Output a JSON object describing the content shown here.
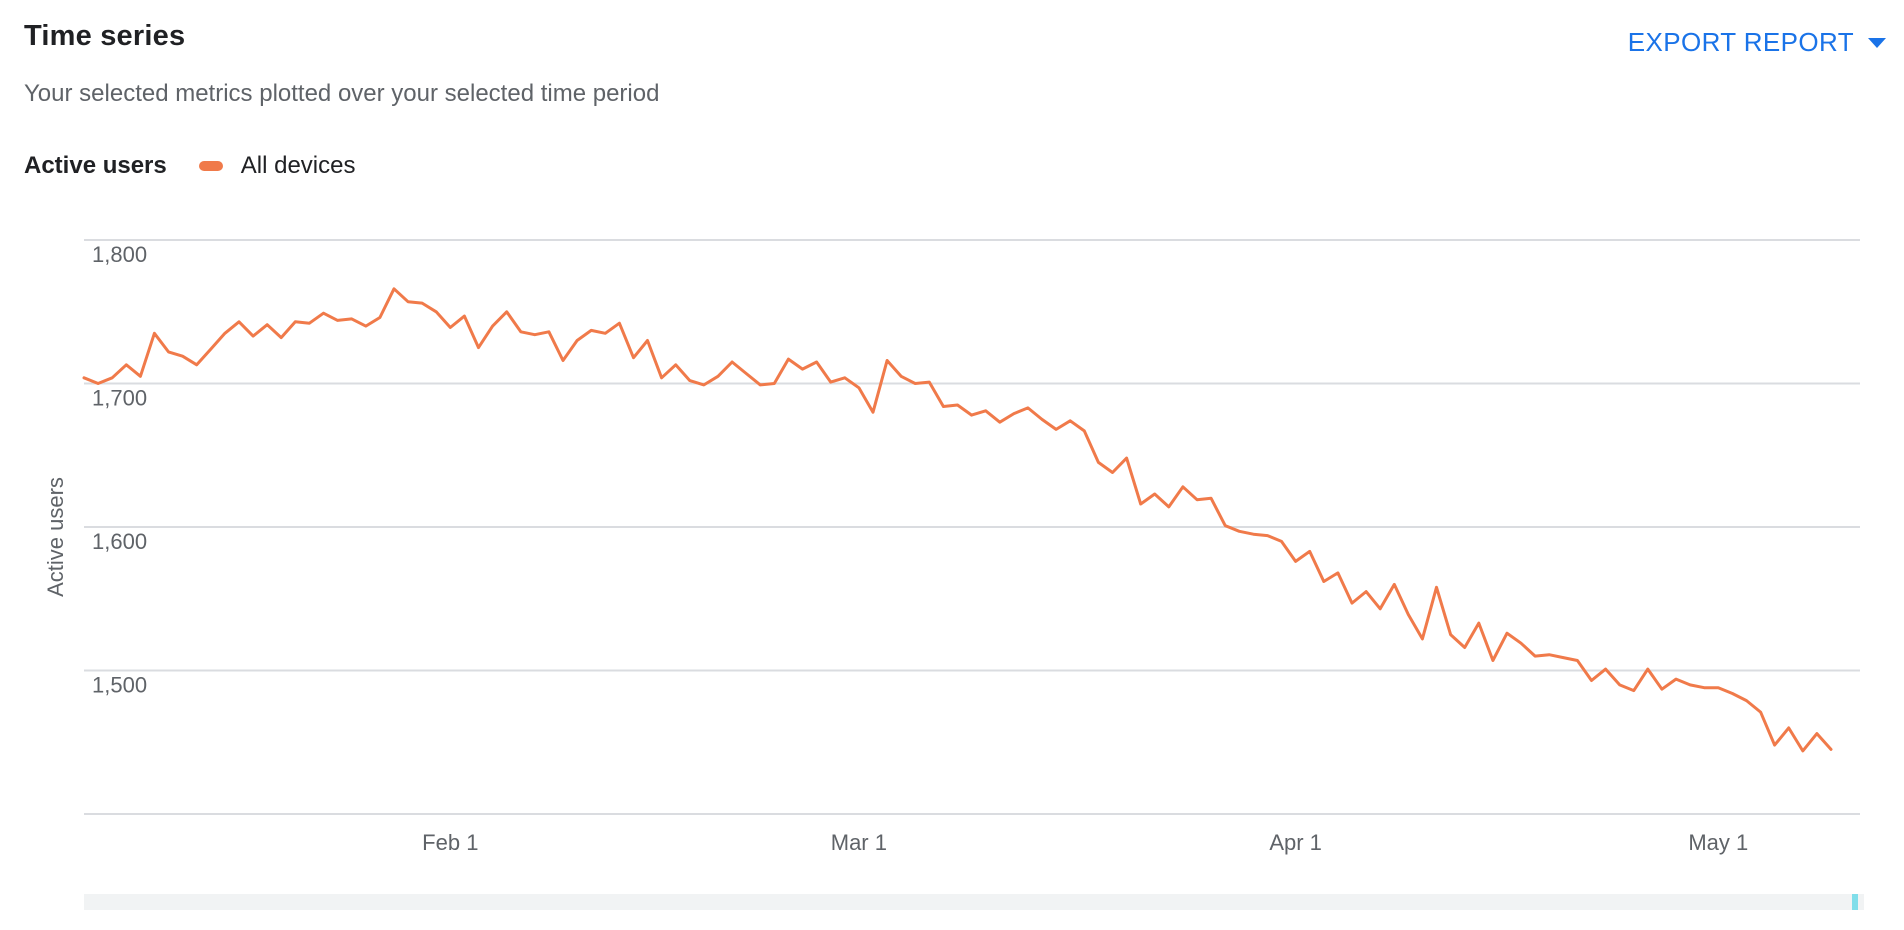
{
  "header": {
    "title": "Time series",
    "subtitle": "Your selected metrics plotted over your selected time period",
    "export_label": "EXPORT REPORT"
  },
  "legend": {
    "metric_label": "Active users",
    "series_label": "All devices"
  },
  "colors": {
    "series": "#f07a4a",
    "accent": "#1a73e8",
    "grid": "#dadce0",
    "axis_text": "#5f6368"
  },
  "chart_data": {
    "type": "line",
    "title": "",
    "xlabel": "",
    "ylabel": "Active users",
    "x_start": "2020-01-06",
    "x_end": "2020-05-09",
    "xticks": [
      {
        "label": "Feb 1",
        "date": "2020-02-01"
      },
      {
        "label": "Mar 1",
        "date": "2020-03-01"
      },
      {
        "label": "Apr 1",
        "date": "2020-04-01"
      },
      {
        "label": "May 1",
        "date": "2020-05-01"
      }
    ],
    "yticks": [
      {
        "label": "1,500",
        "value": 1500
      },
      {
        "label": "1,600",
        "value": 1600
      },
      {
        "label": "1,700",
        "value": 1700
      },
      {
        "label": "1,800",
        "value": 1800
      }
    ],
    "ylim": [
      1400,
      1800
    ],
    "grid": true,
    "legend_position": "top-left",
    "series": [
      {
        "name": "All devices",
        "values": [
          1704,
          1700,
          1704,
          1713,
          1705,
          1735,
          1722,
          1719,
          1713,
          1724,
          1735,
          1743,
          1733,
          1741,
          1732,
          1743,
          1742,
          1749,
          1744,
          1745,
          1740,
          1746,
          1766,
          1757,
          1756,
          1750,
          1739,
          1747,
          1725,
          1740,
          1750,
          1736,
          1734,
          1736,
          1716,
          1730,
          1737,
          1735,
          1742,
          1718,
          1730,
          1704,
          1713,
          1702,
          1699,
          1705,
          1715,
          1707,
          1699,
          1700,
          1717,
          1710,
          1715,
          1701,
          1704,
          1697,
          1680,
          1716,
          1705,
          1700,
          1701,
          1684,
          1685,
          1678,
          1681,
          1673,
          1679,
          1683,
          1675,
          1668,
          1674,
          1667,
          1645,
          1638,
          1648,
          1616,
          1623,
          1614,
          1628,
          1619,
          1620,
          1601,
          1597,
          1595,
          1594,
          1590,
          1576,
          1583,
          1562,
          1568,
          1547,
          1555,
          1543,
          1560,
          1539,
          1522,
          1558,
          1525,
          1516,
          1533,
          1507,
          1526,
          1519,
          1510,
          1511,
          1509,
          1507,
          1493,
          1501,
          1490,
          1486,
          1501,
          1487,
          1494,
          1490,
          1488,
          1488,
          1484,
          1479,
          1471,
          1448,
          1460,
          1444,
          1456,
          1445
        ]
      }
    ]
  }
}
